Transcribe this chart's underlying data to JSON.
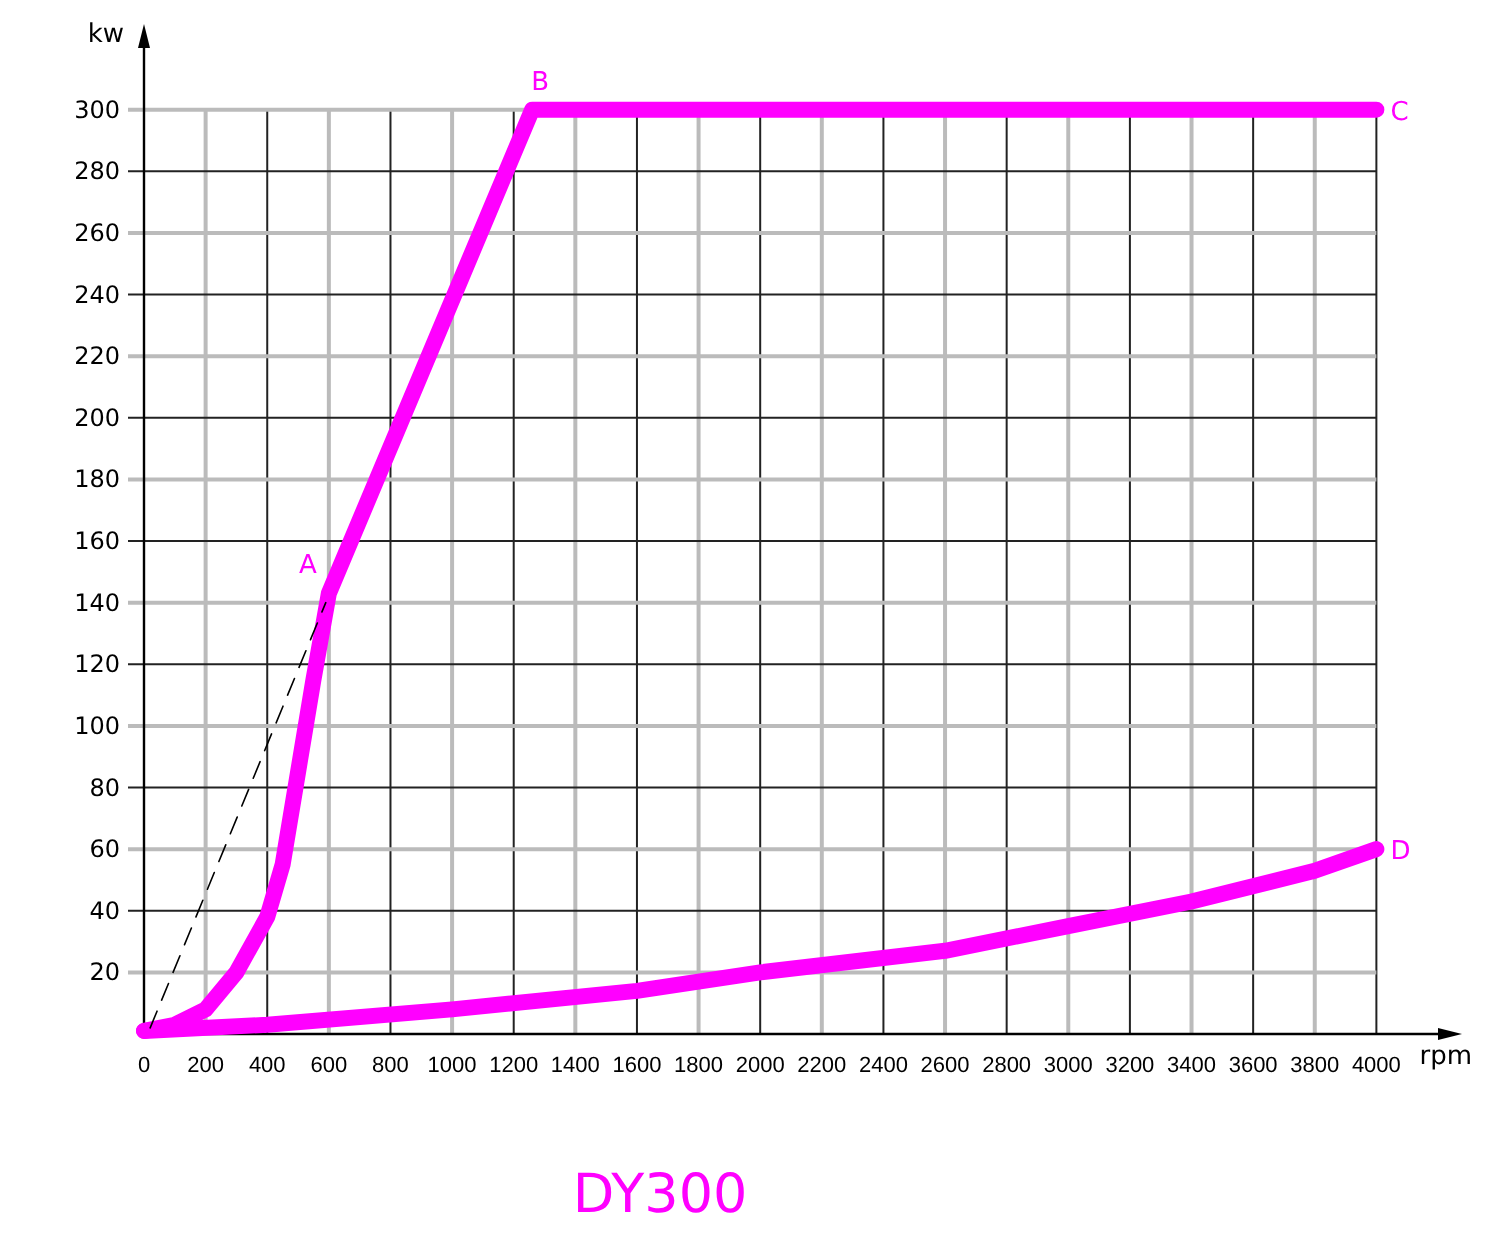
{
  "chart_data": {
    "type": "line",
    "title": "DY300",
    "xlabel": "rpm",
    "ylabel": "kw",
    "xlim": [
      0,
      4200
    ],
    "ylim": [
      0,
      320
    ],
    "xticks": [
      0,
      200,
      400,
      600,
      800,
      1000,
      1200,
      1400,
      1600,
      1800,
      2000,
      2200,
      2400,
      2600,
      2800,
      3000,
      3200,
      3400,
      3600,
      3800,
      4000
    ],
    "yticks": [
      20,
      40,
      60,
      80,
      100,
      120,
      140,
      160,
      180,
      200,
      220,
      240,
      260,
      280,
      300
    ],
    "grid": true,
    "line_style": "solid",
    "marker": "none",
    "series": [
      {
        "color": "#ff00ff",
        "x": [
          0,
          100,
          200,
          300,
          400,
          450,
          500,
          550,
          600,
          1260,
          4000
        ],
        "values": [
          1,
          3,
          8,
          20,
          38,
          55,
          85,
          115,
          143,
          300,
          300
        ]
      },
      {
        "color": "#ff00ff",
        "x": [
          0,
          400,
          1000,
          1600,
          2000,
          2600,
          3000,
          3400,
          3800,
          4000
        ],
        "values": [
          1,
          3,
          8,
          14,
          20,
          27,
          35,
          43,
          53,
          60
        ]
      },
      {
        "color": "#000000",
        "line_style": "dashed",
        "x": [
          20,
          590
        ],
        "values": [
          2,
          140
        ]
      }
    ],
    "annotations": [
      {
        "text": "A",
        "x": 600,
        "y": 143
      },
      {
        "text": "B",
        "x": 1260,
        "y": 300
      },
      {
        "text": "C",
        "x": 4000,
        "y": 300
      },
      {
        "text": "D",
        "x": 4000,
        "y": 60
      }
    ]
  }
}
